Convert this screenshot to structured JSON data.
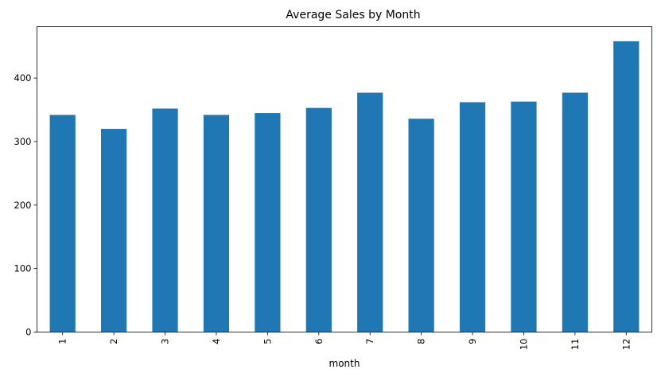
{
  "chart_data": {
    "type": "bar",
    "title": "Average Sales by Month",
    "xlabel": "month",
    "ylabel": "",
    "categories": [
      "1",
      "2",
      "3",
      "4",
      "5",
      "6",
      "7",
      "8",
      "9",
      "10",
      "11",
      "12"
    ],
    "values": [
      342,
      320,
      352,
      342,
      345,
      353,
      377,
      336,
      362,
      363,
      377,
      458
    ],
    "ylim": [
      0,
      481
    ],
    "yticks": [
      0,
      100,
      200,
      300,
      400
    ],
    "bar_color": "#1f77b4",
    "grid": false,
    "legend": "none",
    "xtick_rotation": "vertical"
  }
}
